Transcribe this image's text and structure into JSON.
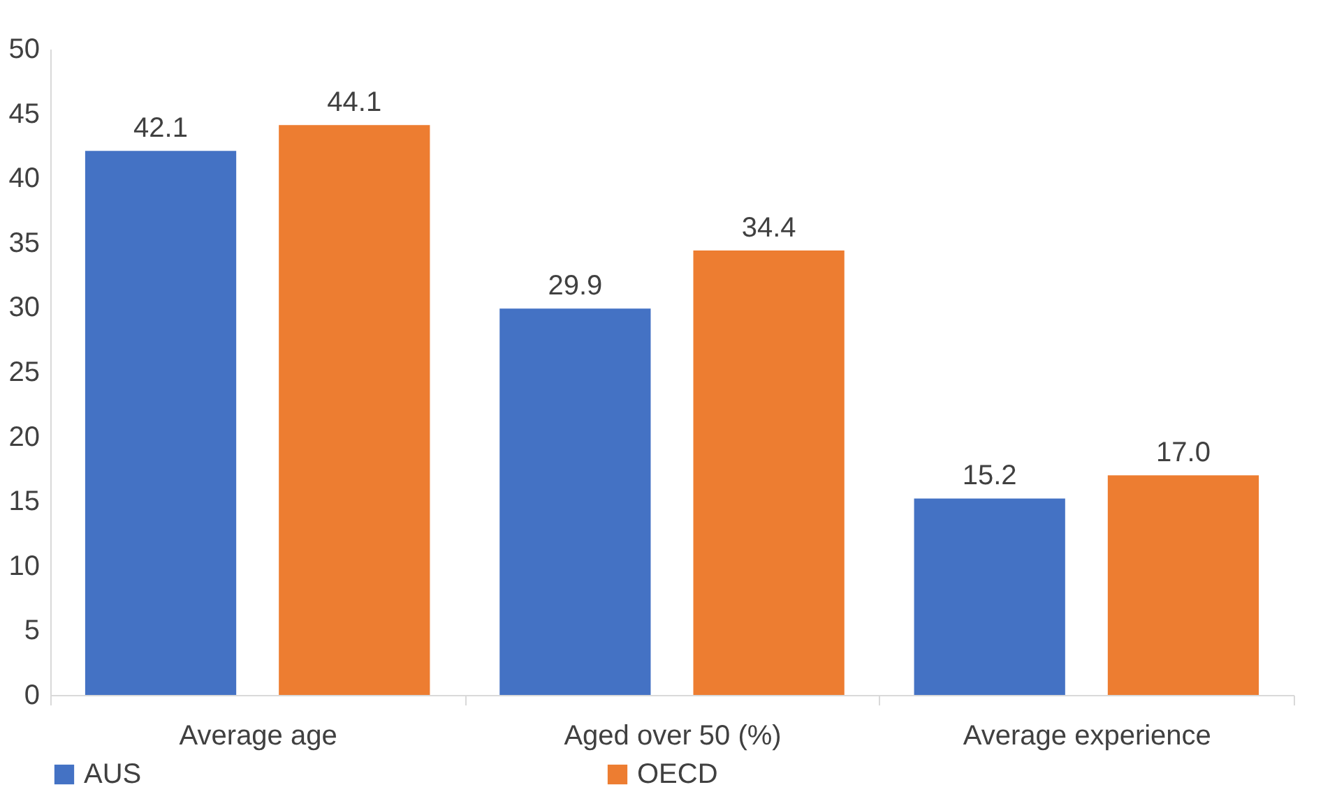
{
  "chart_data": {
    "type": "bar",
    "categories": [
      "Average age",
      "Aged over 50 (%)",
      "Average experience"
    ],
    "series": [
      {
        "name": "AUS",
        "color": "#4472c4",
        "values": [
          42.1,
          29.9,
          15.2
        ],
        "value_labels": [
          "42.1",
          "29.9",
          "15.2"
        ]
      },
      {
        "name": "OECD",
        "color": "#ed7d31",
        "values": [
          44.1,
          34.4,
          17.0
        ],
        "value_labels": [
          "44.1",
          "34.4",
          "17.0"
        ]
      }
    ],
    "ylim": [
      0,
      50
    ],
    "yticks": [
      0,
      5,
      10,
      15,
      20,
      25,
      30,
      35,
      40,
      45,
      50
    ],
    "grid": false,
    "legend": "bottom"
  }
}
